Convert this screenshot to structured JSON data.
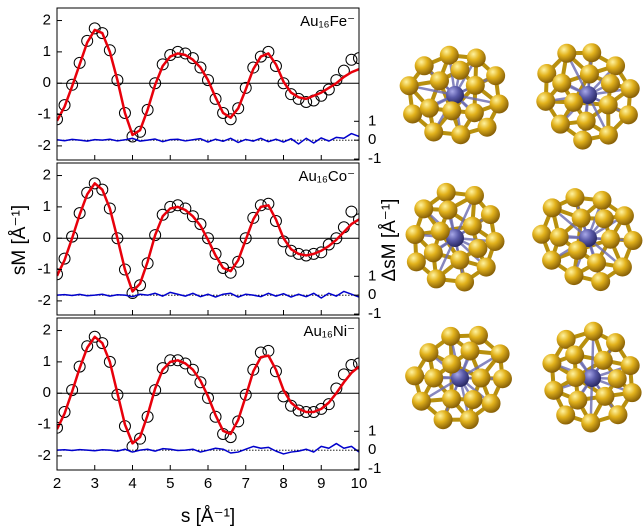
{
  "chart_data": {
    "type": "line",
    "xlabel": "s [Å⁻¹]",
    "ylabel": "sM [Å⁻¹]",
    "y2label": "ΔsM [Å⁻¹]",
    "xlim": [
      2,
      10
    ],
    "xticks": [
      2,
      3,
      4,
      5,
      6,
      7,
      8,
      9,
      10
    ],
    "ylim": [
      -2.45,
      2.4
    ],
    "yticks": [
      -2,
      -1,
      0,
      1,
      2
    ],
    "y2lim": [
      -1.05,
      7.0
    ],
    "y2ticks": [
      -1,
      0,
      1
    ],
    "zero_line": true,
    "x": [
      2,
      2.2,
      2.4,
      2.6,
      2.8,
      3,
      3.2,
      3.4,
      3.6,
      3.8,
      4,
      4.2,
      4.4,
      4.6,
      4.8,
      5,
      5.2,
      5.4,
      5.6,
      5.8,
      6,
      6.2,
      6.4,
      6.6,
      6.8,
      7,
      7.2,
      7.4,
      7.6,
      7.8,
      8,
      8.2,
      8.4,
      8.6,
      8.8,
      9,
      9.2,
      9.4,
      9.6,
      9.8,
      10
    ],
    "panels": [
      {
        "label": "Au₁₆Fe⁻",
        "series": [
          {
            "style": "markers",
            "color": "#000000",
            "values": [
              -1.15,
              -0.7,
              -0.05,
              0.65,
              1.35,
              1.75,
              1.6,
              1.05,
              0.1,
              -0.95,
              -1.7,
              -1.55,
              -0.85,
              0.0,
              0.6,
              0.9,
              1.0,
              0.95,
              0.8,
              0.5,
              0.1,
              -0.5,
              -0.95,
              -1.15,
              -0.8,
              -0.15,
              0.5,
              0.85,
              1.0,
              0.55,
              0.0,
              -0.35,
              -0.5,
              -0.6,
              -0.55,
              -0.4,
              -0.2,
              0.1,
              0.4,
              0.75,
              0.8
            ]
          },
          {
            "style": "line",
            "color": "#e8000b",
            "values": [
              -1.2,
              -0.75,
              -0.1,
              0.6,
              1.3,
              1.7,
              1.6,
              1.0,
              0.1,
              -0.95,
              -1.65,
              -1.5,
              -0.85,
              -0.05,
              0.55,
              0.85,
              0.95,
              0.9,
              0.75,
              0.5,
              0.1,
              -0.45,
              -0.95,
              -1.1,
              -0.8,
              -0.2,
              0.45,
              0.85,
              0.95,
              0.6,
              0.05,
              -0.3,
              -0.45,
              -0.5,
              -0.4,
              -0.3,
              -0.15,
              0,
              0.2,
              0.35,
              0.45
            ]
          },
          {
            "style": "line",
            "color": "#0000cc",
            "axis": "y2",
            "values": [
              0.02,
              -0.03,
              0.04,
              0.0,
              -0.05,
              0.03,
              0.0,
              0.05,
              -0.04,
              0.02,
              0.1,
              -0.05,
              0.0,
              0.06,
              -0.08,
              0.03,
              0.05,
              -0.04,
              0.02,
              0.08,
              -0.1,
              0.05,
              -0.06,
              0.1,
              -0.12,
              0.04,
              -0.05,
              0.1,
              -0.08,
              0.05,
              -0.1,
              0.08,
              -0.2,
              0.1,
              -0.15,
              0.12,
              -0.05,
              0.15,
              0.1,
              0.35,
              0.2
            ]
          }
        ]
      },
      {
        "label": "Au₁₆Co⁻",
        "series": [
          {
            "style": "markers",
            "color": "#000000",
            "values": [
              -1.15,
              -0.65,
              0.05,
              0.8,
              1.45,
              1.75,
              1.55,
              0.95,
              0.0,
              -1.0,
              -1.75,
              -1.5,
              -0.8,
              0.1,
              0.75,
              1.0,
              1.05,
              0.95,
              0.7,
              0.45,
              0.0,
              -0.5,
              -0.95,
              -1.1,
              -0.75,
              0.0,
              0.65,
              1.05,
              1.1,
              0.55,
              -0.1,
              -0.4,
              -0.5,
              -0.55,
              -0.5,
              -0.45,
              -0.2,
              0.0,
              0.35,
              0.85,
              0.6
            ]
          },
          {
            "style": "line",
            "color": "#e8000b",
            "values": [
              -1.2,
              -0.7,
              0.0,
              0.75,
              1.4,
              1.75,
              1.55,
              0.95,
              0.0,
              -1.0,
              -1.7,
              -1.45,
              -0.75,
              0.1,
              0.7,
              0.95,
              1.0,
              0.9,
              0.7,
              0.4,
              -0.05,
              -0.55,
              -0.95,
              -1.05,
              -0.7,
              -0.05,
              0.6,
              1.0,
              1.05,
              0.6,
              0.0,
              -0.35,
              -0.5,
              -0.55,
              -0.5,
              -0.4,
              -0.25,
              -0.05,
              0.2,
              0.45,
              0.6
            ]
          },
          {
            "style": "line",
            "color": "#0000cc",
            "axis": "y2",
            "values": [
              0.0,
              0.03,
              -0.02,
              0.04,
              -0.03,
              0.0,
              0.05,
              -0.05,
              0.02,
              0.0,
              -0.08,
              0.05,
              0.0,
              0.1,
              -0.05,
              0.15,
              0.05,
              -0.05,
              0.1,
              -0.08,
              0.05,
              -0.1,
              0.05,
              0.1,
              -0.1,
              0.05,
              0.0,
              -0.08,
              0.1,
              -0.05,
              0.08,
              -0.1,
              0.05,
              -0.08,
              0.1,
              -0.15,
              0.1,
              -0.05,
              0.2,
              0.05,
              -0.1
            ]
          }
        ]
      },
      {
        "label": "Au₁₆Ni⁻",
        "series": [
          {
            "style": "markers",
            "color": "#000000",
            "values": [
              -1.1,
              -0.6,
              0.1,
              0.85,
              1.5,
              1.8,
              1.6,
              1.0,
              -0.05,
              -1.05,
              -1.7,
              -1.45,
              -0.75,
              0.1,
              0.8,
              1.05,
              1.05,
              0.95,
              0.75,
              0.35,
              -0.15,
              -0.75,
              -1.3,
              -1.4,
              -0.9,
              -0.05,
              0.75,
              1.3,
              1.35,
              0.7,
              -0.1,
              -0.4,
              -0.55,
              -0.6,
              -0.6,
              -0.5,
              -0.35,
              0.15,
              0.6,
              0.9,
              0.95
            ]
          },
          {
            "style": "line",
            "color": "#e8000b",
            "values": [
              -1.15,
              -0.65,
              0.05,
              0.8,
              1.45,
              1.8,
              1.6,
              1.0,
              0.0,
              -1.0,
              -1.6,
              -1.4,
              -0.7,
              0.15,
              0.75,
              1.0,
              1.05,
              0.95,
              0.75,
              0.4,
              -0.1,
              -0.7,
              -1.2,
              -1.3,
              -0.85,
              -0.1,
              0.7,
              1.15,
              1.2,
              0.75,
              0.1,
              -0.3,
              -0.5,
              -0.6,
              -0.6,
              -0.5,
              -0.3,
              0.0,
              0.35,
              0.65,
              0.85
            ]
          },
          {
            "style": "line",
            "color": "#0000cc",
            "axis": "y2",
            "values": [
              0.0,
              0.02,
              -0.02,
              0.03,
              0.0,
              -0.03,
              0.02,
              0.0,
              -0.05,
              0.05,
              -0.1,
              0.0,
              0.05,
              -0.05,
              0.08,
              0.05,
              -0.02,
              0.0,
              0.05,
              -0.1,
              0.0,
              0.1,
              0.05,
              -0.15,
              -0.1,
              0.05,
              0.2,
              0.1,
              0.15,
              -0.05,
              -0.2,
              -0.1,
              -0.05,
              0.05,
              -0.1,
              0.2,
              0.1,
              0.35,
              0.1,
              0.2,
              -0.1
            ]
          }
        ]
      }
    ]
  }
}
